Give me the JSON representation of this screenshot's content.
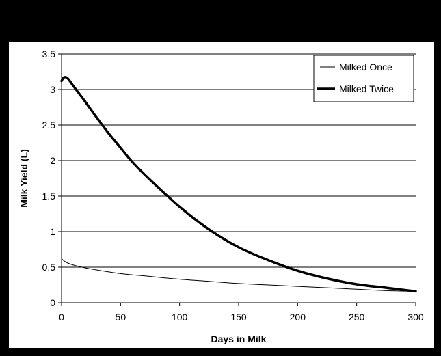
{
  "chart_data": {
    "type": "line",
    "title": "",
    "xlabel": "Days in Milk",
    "ylabel": "Milk Yield (L)",
    "xlim": [
      0,
      300
    ],
    "ylim": [
      0,
      3.5
    ],
    "x_ticks": [
      "0",
      "50",
      "100",
      "150",
      "200",
      "250",
      "300"
    ],
    "y_ticks": [
      "0",
      "0.5",
      "1",
      "1.5",
      "2",
      "2.5",
      "3",
      "3.5"
    ],
    "grid": "horizontal",
    "legend_position": "top-right",
    "series": [
      {
        "name": "Milked Once",
        "color": "#000000",
        "weight": "thin",
        "x": [
          0,
          2,
          5,
          10,
          20,
          30,
          50,
          75,
          100,
          125,
          150,
          175,
          200,
          225,
          250,
          275,
          300
        ],
        "y": [
          0.62,
          0.59,
          0.56,
          0.53,
          0.49,
          0.46,
          0.41,
          0.37,
          0.33,
          0.3,
          0.27,
          0.25,
          0.23,
          0.21,
          0.19,
          0.17,
          0.16
        ]
      },
      {
        "name": "Milked Twice",
        "color": "#000000",
        "weight": "thick",
        "x": [
          0,
          2,
          5,
          10,
          15,
          20,
          30,
          40,
          50,
          60,
          75,
          100,
          125,
          150,
          175,
          200,
          225,
          250,
          275,
          300
        ],
        "y": [
          3.12,
          3.17,
          3.16,
          3.05,
          2.94,
          2.83,
          2.6,
          2.38,
          2.18,
          1.98,
          1.73,
          1.35,
          1.03,
          0.78,
          0.6,
          0.45,
          0.34,
          0.26,
          0.21,
          0.16
        ]
      }
    ]
  }
}
